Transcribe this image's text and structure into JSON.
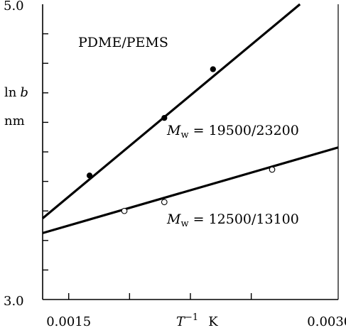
{
  "chart_data": {
    "type": "scatter",
    "title": "",
    "annotations": {
      "system": "PDME/PEMS",
      "upper_label": {
        "sym": "M",
        "sub": "w",
        "text": "= 19500/23200"
      },
      "lower_label": {
        "sym": "M",
        "sub": "w",
        "text": "= 12500/13100"
      }
    },
    "ylabel": {
      "line1_prefix": "ln",
      "line1_var": "b",
      "line2": "nm"
    },
    "xlabel": {
      "var": "T",
      "exp": "−1",
      "unit": "K"
    },
    "xlim": [
      0.00135,
      0.00305
    ],
    "ylim": [
      3.0,
      5.0
    ],
    "x_tick_labels": [
      {
        "x": 0.0015,
        "label": "0.0015"
      },
      {
        "x": 0.003,
        "label": "0.0030"
      }
    ],
    "y_tick_labels": [
      {
        "y": 3.0,
        "label": "3.0"
      },
      {
        "y": 5.0,
        "label": "5.0"
      }
    ],
    "x_ticks": [
      0.0015,
      0.00185,
      0.0022,
      0.00255
    ],
    "y_ticks": [
      3.2,
      3.4,
      3.6,
      3.8,
      4.0,
      4.2,
      4.4,
      4.6,
      4.8
    ],
    "series": [
      {
        "marker": "filled-circle",
        "points": [
          [
            0.00162,
            3.84
          ],
          [
            0.00205,
            4.23
          ],
          [
            0.00233,
            4.56
          ]
        ],
        "fit": [
          [
            0.00135,
            3.55
          ],
          [
            0.00283,
            5.0
          ]
        ]
      },
      {
        "marker": "open-circle",
        "points": [
          [
            0.00182,
            3.6
          ],
          [
            0.00205,
            3.66
          ],
          [
            0.00267,
            3.88
          ]
        ],
        "fit": [
          [
            0.00135,
            3.45
          ],
          [
            0.00305,
            4.03
          ]
        ]
      }
    ]
  }
}
